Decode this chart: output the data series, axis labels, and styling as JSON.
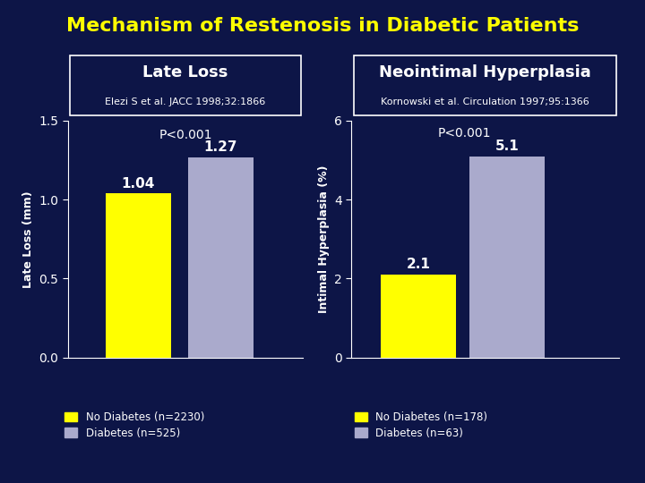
{
  "title": "Mechanism of Restenosis in Diabetic Patients",
  "title_color": "#FFFF00",
  "background_color": "#0D1547",
  "left_panel": {
    "title": "Late Loss",
    "subtitle": "Elezi S et al. JACC 1998;32:1866",
    "ylabel": "Late Loss (mm)",
    "values": [
      1.04,
      1.27
    ],
    "bar_colors": [
      "#FFFF00",
      "#AAAACC"
    ],
    "ylim": [
      0,
      1.5
    ],
    "yticks": [
      0,
      0.5,
      1,
      1.5
    ],
    "pvalue": "P<0.001",
    "legend": [
      "No Diabetes (n=2230)",
      "Diabetes (n=525)"
    ]
  },
  "right_panel": {
    "title": "Neointimal Hyperplasia",
    "subtitle": "Kornowski et al. Circulation 1997;95:1366",
    "ylabel": "Intimal Hyperplasia (%)",
    "values": [
      2.1,
      5.1
    ],
    "bar_colors": [
      "#FFFF00",
      "#AAAACC"
    ],
    "ylim": [
      0,
      6
    ],
    "yticks": [
      0,
      2,
      4,
      6
    ],
    "pvalue": "P<0.001",
    "legend": [
      "No Diabetes (n=178)",
      "Diabetes (n=63)"
    ]
  }
}
